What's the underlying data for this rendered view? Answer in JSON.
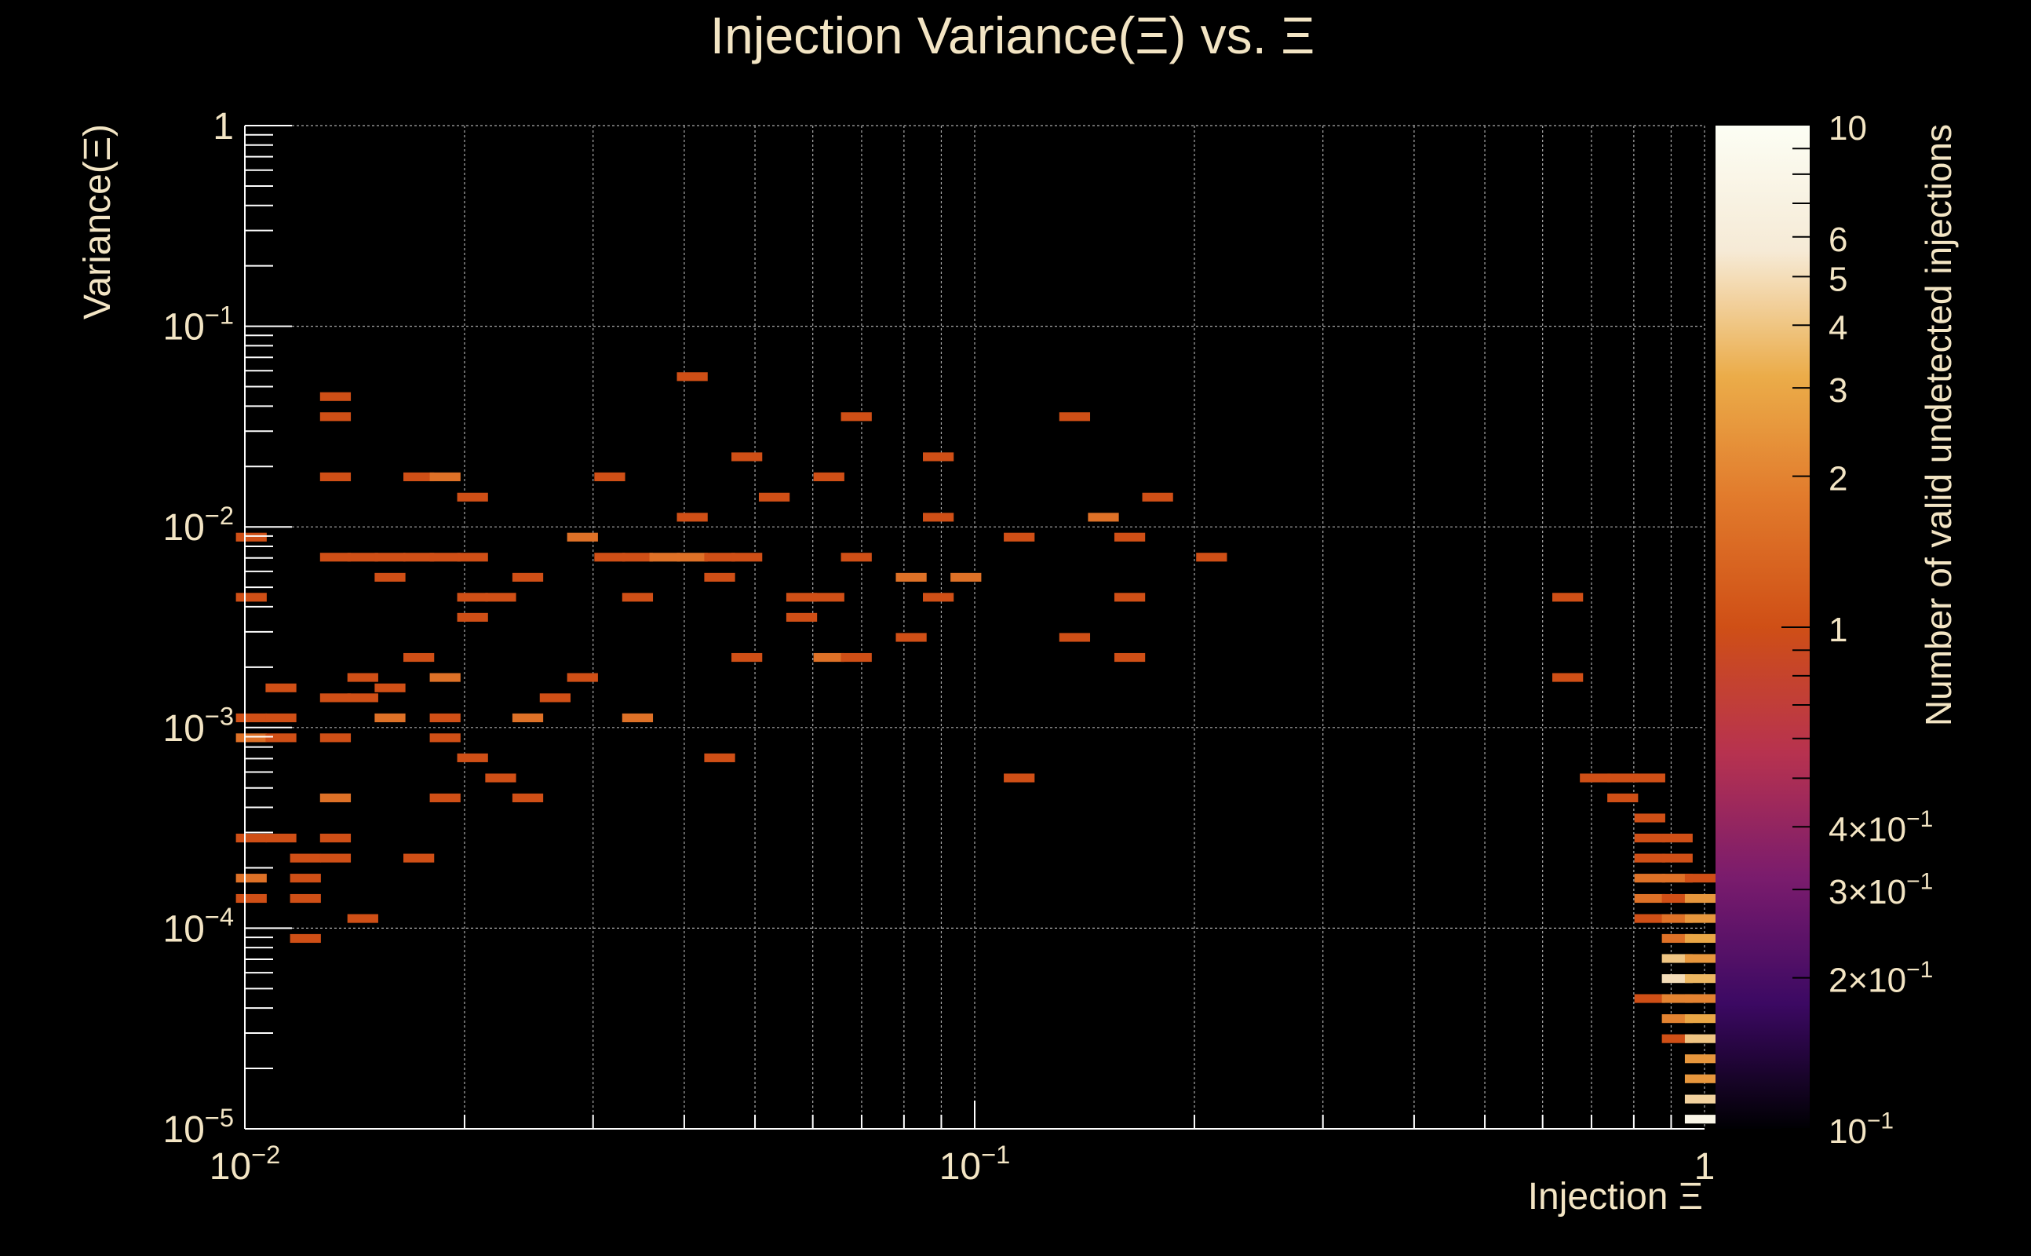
{
  "chart_data": {
    "type": "heatmap",
    "title": "Injection Variance(Ξ) vs. Ξ",
    "xlabel": "Injection Ξ",
    "ylabel": "Variance(Ξ)",
    "colorbar_label": "Number of valid undetected injections",
    "x_scale": "log",
    "y_scale": "log",
    "z_scale": "log",
    "xlim": [
      0.01,
      1
    ],
    "ylim": [
      1e-05,
      1
    ],
    "zlim": [
      0.1,
      10
    ],
    "bins_per_decade": 24,
    "x_major_ticks": [
      {
        "value": 0.01,
        "base": "10",
        "exp": "−2"
      },
      {
        "value": 0.1,
        "base": "10",
        "exp": "−1"
      },
      {
        "value": 1,
        "base": "1",
        "exp": ""
      }
    ],
    "y_major_ticks": [
      {
        "value": 1e-05,
        "base": "10",
        "exp": "−5"
      },
      {
        "value": 0.0001,
        "base": "10",
        "exp": "−4"
      },
      {
        "value": 0.001,
        "base": "10",
        "exp": "−3"
      },
      {
        "value": 0.01,
        "base": "10",
        "exp": "−2"
      },
      {
        "value": 0.1,
        "base": "10",
        "exp": "−1"
      },
      {
        "value": 1,
        "base": "1",
        "exp": ""
      }
    ],
    "z_ticks": [
      {
        "value": 10,
        "base": "10",
        "exp": ""
      },
      {
        "value": 6,
        "base": "6",
        "exp": ""
      },
      {
        "value": 5,
        "base": "5",
        "exp": ""
      },
      {
        "value": 4,
        "base": "4",
        "exp": ""
      },
      {
        "value": 3,
        "base": "3",
        "exp": ""
      },
      {
        "value": 2,
        "base": "2",
        "exp": ""
      },
      {
        "value": 1,
        "base": "1",
        "exp": ""
      },
      {
        "value": 0.4,
        "base": "4×10",
        "exp": "−1"
      },
      {
        "value": 0.3,
        "base": "3×10",
        "exp": "−1"
      },
      {
        "value": 0.2,
        "base": "2×10",
        "exp": "−1"
      },
      {
        "value": 0.1,
        "base": "10",
        "exp": "−1"
      }
    ],
    "cells_note": "each cell = [x_bin_center, y_bin_center, count]",
    "cells": [
      [
        0.0102,
        0.00891,
        1
      ],
      [
        0.0102,
        0.00447,
        1
      ],
      [
        0.0102,
        0.00112,
        1
      ],
      [
        0.0102,
        0.000891,
        1.6
      ],
      [
        0.0102,
        0.000282,
        1
      ],
      [
        0.0102,
        0.000178,
        1.6
      ],
      [
        0.0102,
        0.000141,
        1
      ],
      [
        0.0112,
        0.00158,
        1
      ],
      [
        0.0112,
        0.00112,
        1
      ],
      [
        0.0112,
        0.000891,
        1
      ],
      [
        0.0112,
        0.000282,
        1
      ],
      [
        0.0121,
        0.000224,
        1
      ],
      [
        0.0121,
        0.000178,
        1
      ],
      [
        0.0121,
        0.000141,
        1
      ],
      [
        0.0121,
        8.91e-05,
        1
      ],
      [
        0.0133,
        0.0447,
        1
      ],
      [
        0.0133,
        0.0355,
        1
      ],
      [
        0.0133,
        0.0178,
        1
      ],
      [
        0.0133,
        0.00708,
        1
      ],
      [
        0.0133,
        0.00141,
        1
      ],
      [
        0.0133,
        0.000891,
        1
      ],
      [
        0.0133,
        0.000447,
        1.6
      ],
      [
        0.0133,
        0.000282,
        1
      ],
      [
        0.0133,
        0.000224,
        1
      ],
      [
        0.0145,
        0.00708,
        1
      ],
      [
        0.0145,
        0.00178,
        1
      ],
      [
        0.0145,
        0.00141,
        1
      ],
      [
        0.0145,
        0.000112,
        1
      ],
      [
        0.0158,
        0.00708,
        1
      ],
      [
        0.0158,
        0.00562,
        1
      ],
      [
        0.0158,
        0.00158,
        1
      ],
      [
        0.0158,
        0.00112,
        1.6
      ],
      [
        0.0173,
        0.0178,
        1
      ],
      [
        0.0173,
        0.00708,
        1
      ],
      [
        0.0173,
        0.00224,
        1
      ],
      [
        0.0173,
        0.000224,
        1
      ],
      [
        0.0188,
        0.0178,
        1.6
      ],
      [
        0.0188,
        0.00708,
        1
      ],
      [
        0.0188,
        0.00178,
        1.6
      ],
      [
        0.0188,
        0.00112,
        1
      ],
      [
        0.0188,
        0.000891,
        1
      ],
      [
        0.0188,
        0.000447,
        1
      ],
      [
        0.0205,
        0.0141,
        1
      ],
      [
        0.0205,
        0.00708,
        1
      ],
      [
        0.0205,
        0.00447,
        1
      ],
      [
        0.0205,
        0.00355,
        1
      ],
      [
        0.0205,
        0.000708,
        1
      ],
      [
        0.0224,
        0.00447,
        1
      ],
      [
        0.0224,
        0.000562,
        1
      ],
      [
        0.0244,
        0.00562,
        1
      ],
      [
        0.0244,
        0.00112,
        1.6
      ],
      [
        0.0244,
        0.000447,
        1
      ],
      [
        0.0266,
        0.00141,
        1
      ],
      [
        0.029,
        0.00891,
        1.6
      ],
      [
        0.029,
        0.00178,
        1
      ],
      [
        0.0316,
        0.0178,
        1
      ],
      [
        0.0316,
        0.00708,
        1
      ],
      [
        0.0345,
        0.00708,
        1
      ],
      [
        0.0345,
        0.00447,
        1
      ],
      [
        0.0345,
        0.00112,
        1.6
      ],
      [
        0.0376,
        0.00708,
        1.6
      ],
      [
        0.041,
        0.0562,
        1
      ],
      [
        0.041,
        0.0112,
        1
      ],
      [
        0.041,
        0.00708,
        1.6
      ],
      [
        0.0447,
        0.00708,
        1
      ],
      [
        0.0447,
        0.00562,
        1
      ],
      [
        0.0447,
        0.000708,
        1
      ],
      [
        0.0487,
        0.0224,
        1
      ],
      [
        0.0487,
        0.00708,
        1
      ],
      [
        0.0487,
        0.00224,
        1
      ],
      [
        0.0531,
        0.0141,
        1
      ],
      [
        0.0579,
        0.00447,
        1
      ],
      [
        0.0579,
        0.00355,
        1
      ],
      [
        0.0631,
        0.0178,
        1
      ],
      [
        0.0631,
        0.00447,
        1
      ],
      [
        0.0631,
        0.00224,
        1.6
      ],
      [
        0.0688,
        0.0355,
        1
      ],
      [
        0.0688,
        0.00708,
        1
      ],
      [
        0.0688,
        0.00224,
        1
      ],
      [
        0.0818,
        0.00562,
        1.6
      ],
      [
        0.0818,
        0.00282,
        1
      ],
      [
        0.0891,
        0.0224,
        1
      ],
      [
        0.0891,
        0.0112,
        1
      ],
      [
        0.0891,
        0.00447,
        1
      ],
      [
        0.0972,
        0.00562,
        1.6
      ],
      [
        0.115,
        0.00891,
        1
      ],
      [
        0.115,
        0.000562,
        1
      ],
      [
        0.137,
        0.0355,
        1
      ],
      [
        0.137,
        0.00282,
        1
      ],
      [
        0.15,
        0.0112,
        1.6
      ],
      [
        0.163,
        0.00891,
        1
      ],
      [
        0.163,
        0.00447,
        1
      ],
      [
        0.163,
        0.00224,
        1
      ],
      [
        0.178,
        0.0141,
        1
      ],
      [
        0.211,
        0.00708,
        1
      ],
      [
        0.649,
        0.00447,
        1
      ],
      [
        0.649,
        0.00178,
        1
      ],
      [
        0.708,
        0.000562,
        1
      ],
      [
        0.772,
        0.000562,
        1
      ],
      [
        0.772,
        0.000447,
        1
      ],
      [
        0.841,
        0.000562,
        1
      ],
      [
        0.841,
        0.000355,
        1
      ],
      [
        0.841,
        0.000282,
        1
      ],
      [
        0.841,
        0.000224,
        1
      ],
      [
        0.841,
        0.000178,
        1.6
      ],
      [
        0.841,
        0.000141,
        1.6
      ],
      [
        0.841,
        0.000112,
        1
      ],
      [
        0.841,
        4.47e-05,
        1
      ],
      [
        0.917,
        0.000282,
        1
      ],
      [
        0.917,
        0.000224,
        1
      ],
      [
        0.917,
        0.000178,
        1.6
      ],
      [
        0.917,
        0.000141,
        1
      ],
      [
        0.917,
        0.000112,
        1.6
      ],
      [
        0.917,
        8.91e-05,
        1.6
      ],
      [
        0.917,
        7.08e-05,
        4
      ],
      [
        0.917,
        5.62e-05,
        5
      ],
      [
        0.917,
        4.47e-05,
        2
      ],
      [
        0.917,
        3.55e-05,
        2
      ],
      [
        0.917,
        2.82e-05,
        1
      ],
      [
        0.986,
        0.000178,
        1
      ],
      [
        0.986,
        0.000141,
        2.5
      ],
      [
        0.986,
        0.000112,
        2.5
      ],
      [
        0.986,
        8.91e-05,
        3
      ],
      [
        0.986,
        7.08e-05,
        2.5
      ],
      [
        0.986,
        5.62e-05,
        3.5
      ],
      [
        0.986,
        4.47e-05,
        2
      ],
      [
        0.986,
        3.55e-05,
        3
      ],
      [
        0.986,
        2.82e-05,
        4
      ],
      [
        0.986,
        2.24e-05,
        2.5
      ],
      [
        0.986,
        1.78e-05,
        2.5
      ],
      [
        0.986,
        1.41e-05,
        4.5
      ],
      [
        0.986,
        1.12e-05,
        8
      ]
    ]
  },
  "colors": {
    "background": "#000000",
    "text": "#f3e5c4",
    "grid": "#aaaaaa",
    "colormap": [
      "#000003",
      "#3c0963",
      "#7a1c6d",
      "#b7324f",
      "#cf4f16",
      "#e1792b",
      "#ebac49",
      "#f6ead6",
      "#fcfef4"
    ]
  }
}
